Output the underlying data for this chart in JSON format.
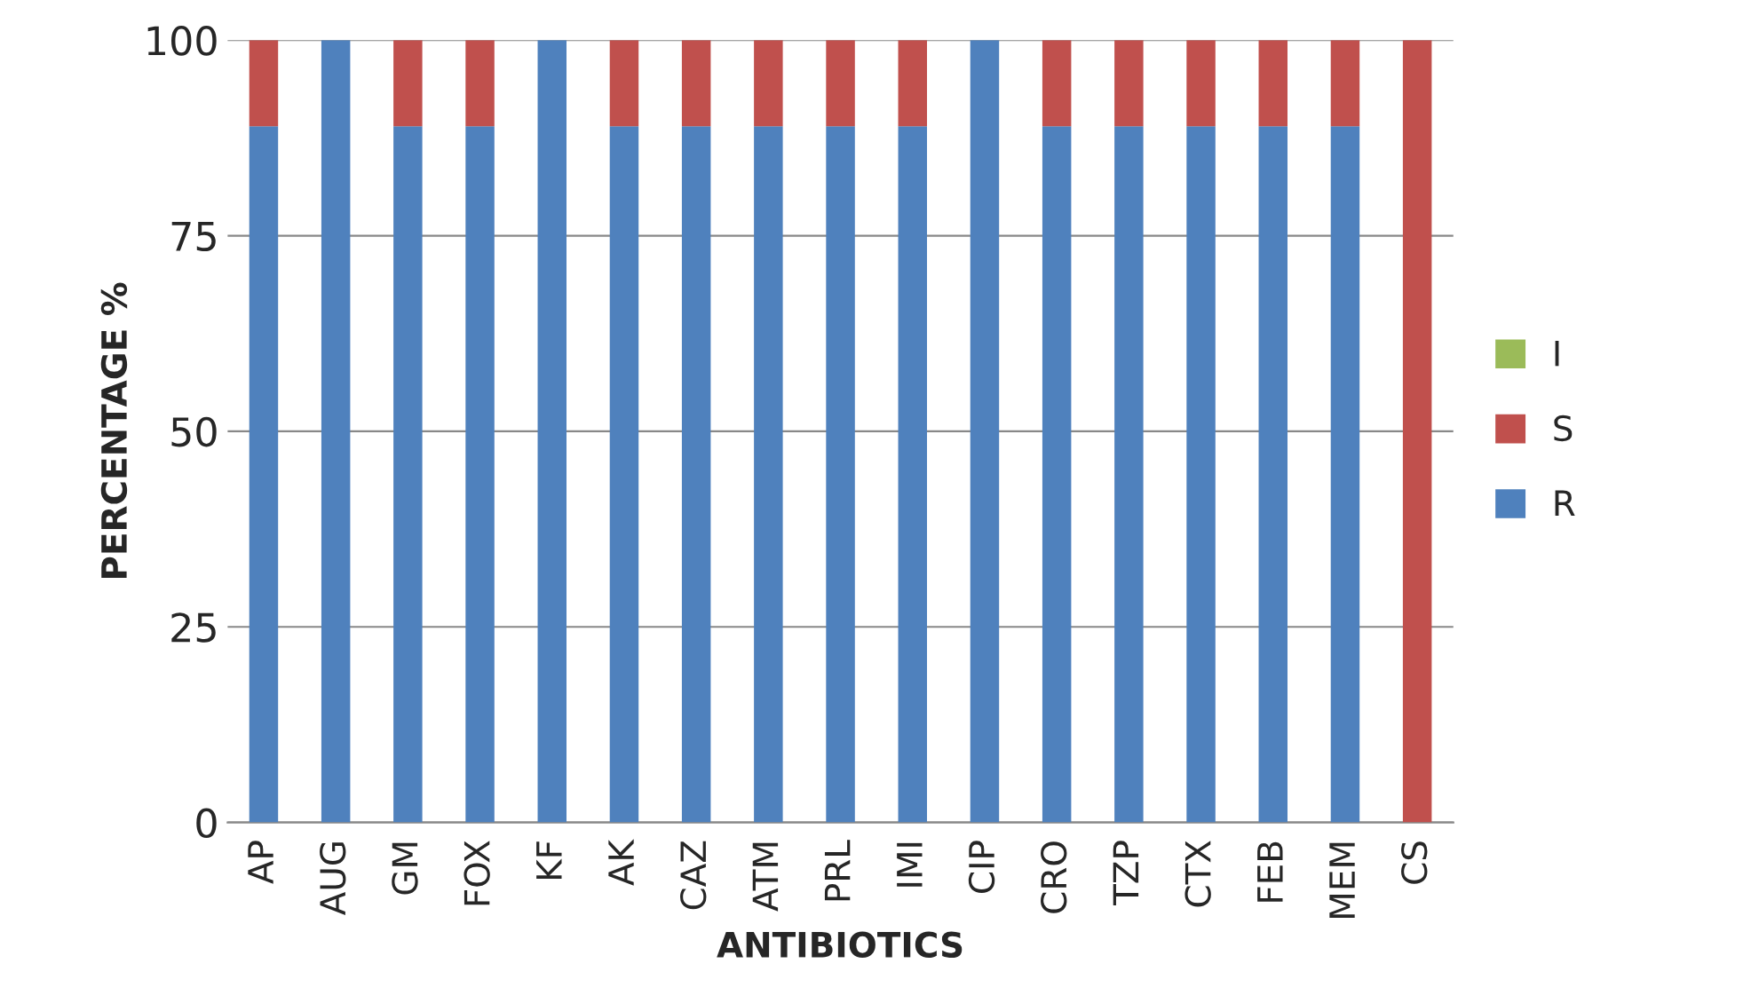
{
  "chart_data": {
    "type": "bar",
    "stacked": true,
    "xlabel": "ANTIBIOTICS",
    "ylabel": "PERCENTAGE %",
    "categories": [
      "AP",
      "AUG",
      "GM",
      "FOX",
      "KF",
      "AK",
      "CAZ",
      "ATM",
      "PRL",
      "IMI",
      "CIP",
      "CRO",
      "TZP",
      "CTX",
      "FEB",
      "MEM",
      "CS"
    ],
    "series": [
      {
        "name": "R",
        "color": "#4f81bd",
        "values": [
          89,
          100,
          89,
          89,
          100,
          89,
          89,
          89,
          89,
          89,
          100,
          89,
          89,
          89,
          89,
          89,
          0
        ]
      },
      {
        "name": "S",
        "color": "#c0504d",
        "values": [
          11,
          0,
          11,
          11,
          0,
          11,
          11,
          11,
          11,
          11,
          0,
          11,
          11,
          11,
          11,
          11,
          100
        ]
      },
      {
        "name": "I",
        "color": "#9bbb59",
        "values": [
          0,
          0,
          0,
          0,
          0,
          0,
          0,
          0,
          0,
          0,
          0,
          0,
          0,
          0,
          0,
          0,
          0
        ]
      }
    ],
    "ylim": [
      0,
      100
    ],
    "yticks": [
      0,
      25,
      50,
      75,
      100
    ],
    "grid": "y",
    "legend": "right"
  }
}
